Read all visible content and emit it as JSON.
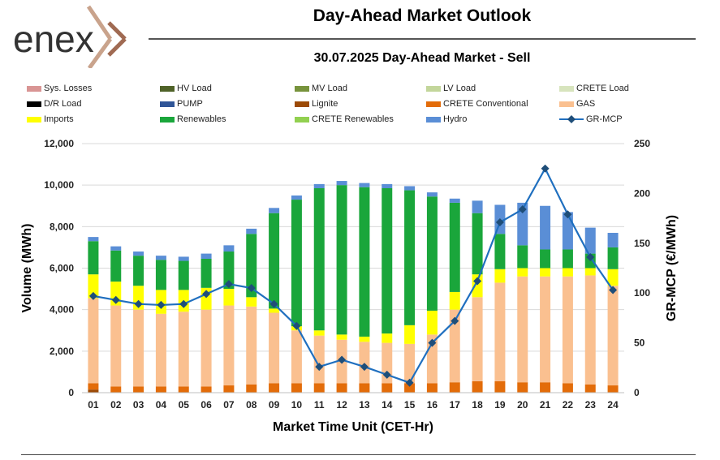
{
  "brand": {
    "logo_text": "enex"
  },
  "header": {
    "title": "Day-Ahead Market Outlook",
    "subtitle": "30.07.2025  Day-Ahead Market - Sell"
  },
  "legend": [
    {
      "label": "Sys. Losses",
      "color": "#d99594",
      "kind": "box"
    },
    {
      "label": "HV Load",
      "color": "#4f6228",
      "kind": "box"
    },
    {
      "label": "MV Load",
      "color": "#77933c",
      "kind": "box"
    },
    {
      "label": "LV Load",
      "color": "#c3d69b",
      "kind": "box"
    },
    {
      "label": "CRETE Load",
      "color": "#d7e4bd",
      "kind": "box"
    },
    {
      "label": "D/R Load",
      "color": "#000000",
      "kind": "box"
    },
    {
      "label": "PUMP",
      "color": "#2f5597",
      "kind": "box"
    },
    {
      "label": "Lignite",
      "color": "#9c4a06",
      "kind": "box"
    },
    {
      "label": "CRETE Conventional",
      "color": "#e36c09",
      "kind": "box"
    },
    {
      "label": "GAS",
      "color": "#fac090",
      "kind": "box"
    },
    {
      "label": "Imports",
      "color": "#ffff00",
      "kind": "box"
    },
    {
      "label": "Renewables",
      "color": "#1aa63b",
      "kind": "box"
    },
    {
      "label": "CRETE Renewables",
      "color": "#92d050",
      "kind": "box"
    },
    {
      "label": "Hydro",
      "color": "#5a8ed6",
      "kind": "box"
    },
    {
      "label": "GR-MCP",
      "color": "#1f6fbf",
      "kind": "line"
    }
  ],
  "chart_data": {
    "type": "bar",
    "stacked": true,
    "title": "30.07.2025  Day-Ahead Market - Sell",
    "xlabel": "Market Time Unit (CET-Hr)",
    "ylabel": "Volume (MWh)",
    "y2label": "GR-MCP (€/MWh)",
    "ylim": [
      0,
      12000
    ],
    "y2lim": [
      0,
      250
    ],
    "yticks": [
      "0",
      "2,000",
      "4,000",
      "6,000",
      "8,000",
      "10,000",
      "12,000"
    ],
    "y2ticks": [
      "0",
      "50",
      "100",
      "150",
      "200",
      "250"
    ],
    "categories": [
      "01",
      "02",
      "03",
      "04",
      "05",
      "06",
      "07",
      "08",
      "09",
      "10",
      "11",
      "12",
      "13",
      "14",
      "15",
      "16",
      "17",
      "18",
      "19",
      "20",
      "21",
      "22",
      "23",
      "24"
    ],
    "series": [
      {
        "name": "Lignite",
        "color": "#9c4a06",
        "values": [
          150,
          0,
          0,
          0,
          0,
          0,
          0,
          0,
          0,
          0,
          0,
          0,
          0,
          0,
          0,
          0,
          0,
          0,
          0,
          0,
          0,
          0,
          0,
          0
        ]
      },
      {
        "name": "CRETE Conventional",
        "color": "#e36c09",
        "values": [
          300,
          300,
          300,
          300,
          300,
          300,
          350,
          400,
          450,
          450,
          450,
          450,
          450,
          450,
          450,
          450,
          500,
          550,
          550,
          500,
          500,
          450,
          400,
          350
        ]
      },
      {
        "name": "GAS",
        "color": "#fac090",
        "values": [
          4100,
          3900,
          3700,
          3500,
          3600,
          3700,
          3850,
          3750,
          3400,
          2550,
          2300,
          2100,
          2000,
          1950,
          1900,
          2350,
          3500,
          4050,
          4750,
          5100,
          5100,
          5150,
          5250,
          4800
        ]
      },
      {
        "name": "Imports",
        "color": "#ffff00",
        "values": [
          1150,
          1150,
          1150,
          1150,
          1050,
          1050,
          800,
          450,
          200,
          200,
          250,
          250,
          250,
          450,
          900,
          1150,
          850,
          1100,
          650,
          400,
          400,
          400,
          350,
          800
        ]
      },
      {
        "name": "Renewables",
        "color": "#1aa63b",
        "values": [
          1600,
          1500,
          1450,
          1450,
          1400,
          1400,
          1800,
          3050,
          4600,
          6100,
          6850,
          7200,
          7200,
          7000,
          6500,
          5500,
          4300,
          2950,
          1700,
          1100,
          900,
          900,
          700,
          1050
        ]
      },
      {
        "name": "Hydro",
        "color": "#5a8ed6",
        "values": [
          200,
          200,
          200,
          200,
          200,
          250,
          300,
          250,
          250,
          200,
          200,
          200,
          200,
          200,
          200,
          200,
          200,
          600,
          1400,
          2050,
          2100,
          1800,
          1250,
          700
        ]
      }
    ],
    "line": {
      "name": "GR-MCP",
      "color": "#1f6fbf",
      "values": [
        97,
        93,
        89,
        88,
        89,
        99,
        109,
        105,
        89,
        67,
        26,
        33,
        26,
        18,
        10,
        50,
        72,
        112,
        171,
        184,
        225,
        179,
        136,
        103
      ]
    }
  }
}
